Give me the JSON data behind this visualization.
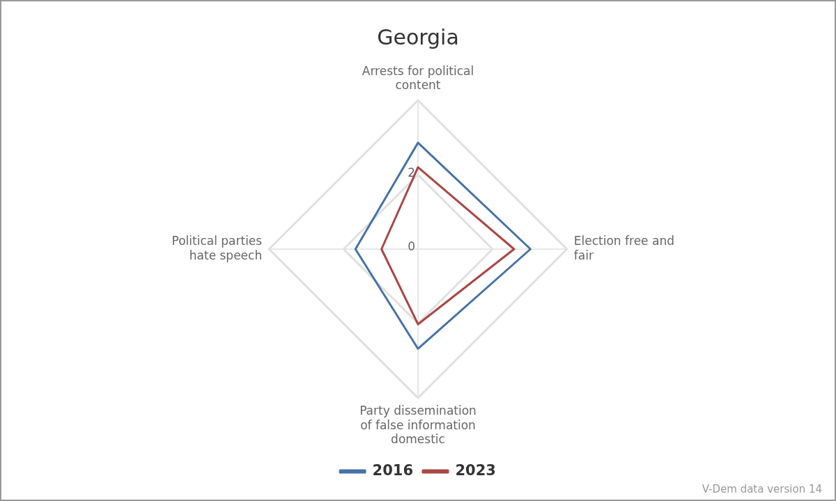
{
  "chart_data": {
    "type": "radar",
    "title": "Georgia",
    "categories": [
      "Arrests for political content",
      "Election free and fair",
      "Party dissemination of false information domestic",
      "Political parties hate speech"
    ],
    "series": [
      {
        "name": "2016",
        "color": "#4572a7",
        "values": [
          2.86,
          3.02,
          2.68,
          1.68
        ]
      },
      {
        "name": "2023",
        "color": "#aa4643",
        "values": [
          2.2,
          2.58,
          2.02,
          0.98
        ]
      }
    ],
    "ylim": [
      0,
      4
    ],
    "yticks": [
      0,
      2
    ],
    "grid": true,
    "legend": "bottom",
    "marker": "none",
    "line_style": "solid",
    "annotations": [
      "V-Dem data version 14"
    ]
  }
}
